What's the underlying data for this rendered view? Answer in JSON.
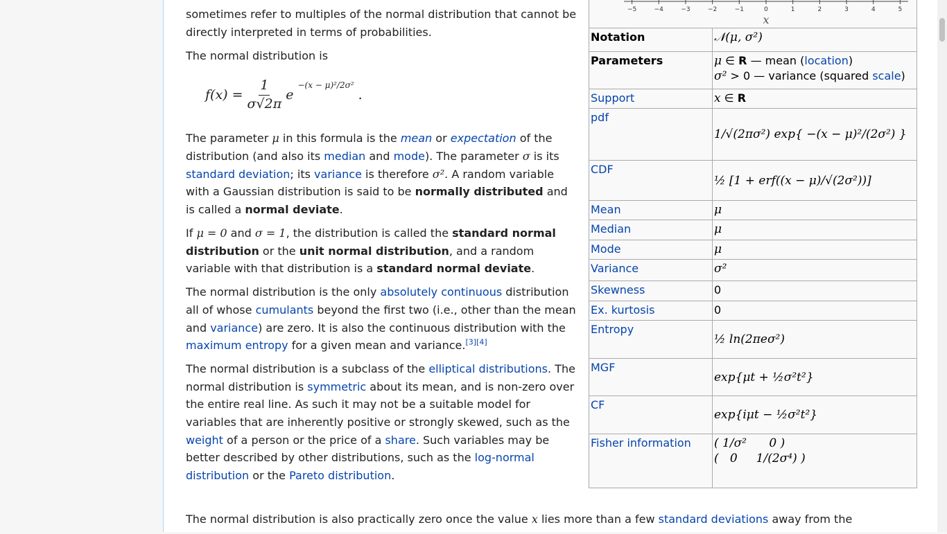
{
  "article": {
    "paragraphs": [
      {
        "runs": [
          {
            "t": "sometimes refer to multiples of the normal distribution that cannot be directly interpreted in terms of probabilities.",
            "s": "text"
          }
        ]
      },
      {
        "runs": [
          {
            "t": "The normal distribution is",
            "s": "text"
          }
        ]
      },
      {
        "runs": [
          {
            "t": "The parameter ",
            "s": "text"
          },
          {
            "t": "μ",
            "s": "math"
          },
          {
            "t": " in this formula is the ",
            "s": "text"
          },
          {
            "t": "mean",
            "s": "ilink"
          },
          {
            "t": " or ",
            "s": "text"
          },
          {
            "t": "expectation",
            "s": "ilink"
          },
          {
            "t": " of the distribution (and also its ",
            "s": "text"
          },
          {
            "t": "median",
            "s": "link"
          },
          {
            "t": " and ",
            "s": "text"
          },
          {
            "t": "mode",
            "s": "link"
          },
          {
            "t": "). The parameter ",
            "s": "text"
          },
          {
            "t": "σ",
            "s": "math"
          },
          {
            "t": " is its ",
            "s": "text"
          },
          {
            "t": "standard deviation",
            "s": "link"
          },
          {
            "t": "; its ",
            "s": "text"
          },
          {
            "t": "variance",
            "s": "link"
          },
          {
            "t": " is therefore ",
            "s": "text"
          },
          {
            "t": "σ²",
            "s": "math"
          },
          {
            "t": ". A random variable with a Gaussian distribution is said to be ",
            "s": "text"
          },
          {
            "t": "normally distributed",
            "s": "bold"
          },
          {
            "t": " and is called a ",
            "s": "text"
          },
          {
            "t": "normal deviate",
            "s": "bold"
          },
          {
            "t": ".",
            "s": "text"
          }
        ]
      },
      {
        "runs": [
          {
            "t": "If ",
            "s": "text"
          },
          {
            "t": "μ = 0",
            "s": "math"
          },
          {
            "t": " and ",
            "s": "text"
          },
          {
            "t": "σ = 1",
            "s": "math"
          },
          {
            "t": ", the distribution is called the ",
            "s": "text"
          },
          {
            "t": "standard normal distribution",
            "s": "bold"
          },
          {
            "t": " or the ",
            "s": "text"
          },
          {
            "t": "unit normal distribution",
            "s": "bold"
          },
          {
            "t": ", and a random variable with that distribution is a ",
            "s": "text"
          },
          {
            "t": "standard normal deviate",
            "s": "bold"
          },
          {
            "t": ".",
            "s": "text"
          }
        ]
      },
      {
        "runs": [
          {
            "t": "The normal distribution is the only ",
            "s": "text"
          },
          {
            "t": "absolutely continuous",
            "s": "link"
          },
          {
            "t": " distribution all of whose ",
            "s": "text"
          },
          {
            "t": "cumulants",
            "s": "link"
          },
          {
            "t": " beyond the first two (i.e., other than the mean and ",
            "s": "text"
          },
          {
            "t": "variance",
            "s": "link"
          },
          {
            "t": ") are zero. It is also the continuous distribution with the ",
            "s": "text"
          },
          {
            "t": "maximum entropy",
            "s": "link"
          },
          {
            "t": " for a given mean and variance.",
            "s": "text"
          },
          {
            "t": "[3]",
            "s": "sup"
          },
          {
            "t": "[4]",
            "s": "sup"
          }
        ]
      },
      {
        "runs": [
          {
            "t": "The normal distribution is a subclass of the ",
            "s": "text"
          },
          {
            "t": "elliptical distributions",
            "s": "link"
          },
          {
            "t": ". The normal distribution is ",
            "s": "text"
          },
          {
            "t": "symmetric",
            "s": "link"
          },
          {
            "t": " about its mean, and is non-zero over the entire real line. As such it may not be a suitable model for variables that are inherently positive or strongly skewed, such as the ",
            "s": "text"
          },
          {
            "t": "weight",
            "s": "link"
          },
          {
            "t": " of a person or the price of a ",
            "s": "text"
          },
          {
            "t": "share",
            "s": "link"
          },
          {
            "t": ". Such variables may be better described by other distributions, such as the ",
            "s": "text"
          },
          {
            "t": "log-normal distribution",
            "s": "link"
          },
          {
            "t": " or the ",
            "s": "text"
          },
          {
            "t": "Pareto distribution",
            "s": "link"
          },
          {
            "t": ".",
            "s": "text"
          }
        ]
      }
    ],
    "formula": {
      "lhs": "f(x) =",
      "num": "1",
      "den": "σ√2π",
      "base": "e",
      "exp": "−(x − μ)²/2σ²",
      "end": "."
    },
    "tail": {
      "runs": [
        {
          "t": "The normal distribution is also practically zero once the value ",
          "s": "text"
        },
        {
          "t": "x",
          "s": "math"
        },
        {
          "t": " lies more than a few ",
          "s": "text"
        },
        {
          "t": "standard deviations",
          "s": "link"
        },
        {
          "t": " away from the",
          "s": "text"
        }
      ]
    }
  },
  "infobox": {
    "axis": {
      "xlim": [
        -5.3,
        5.3
      ],
      "xticks": [
        {
          "value": -5,
          "label": "−5"
        },
        {
          "value": -4,
          "label": "−4"
        },
        {
          "value": -3,
          "label": "−3"
        },
        {
          "value": -2,
          "label": "−2"
        },
        {
          "value": -1,
          "label": "−1"
        },
        0,
        1,
        2,
        3,
        4,
        5
      ],
      "xlabel": "x"
    },
    "rows": [
      {
        "label": {
          "t": "Notation",
          "s": "bold"
        },
        "value": [
          [
            {
              "t": "𝒩(μ, σ²)",
              "s": "math"
            }
          ]
        ]
      },
      {
        "label": {
          "t": "Parameters",
          "s": "bold"
        },
        "value": [
          [
            {
              "t": "μ",
              "s": "math"
            },
            {
              "t": " ∈ ",
              "s": "text"
            },
            {
              "t": "R",
              "s": "bold"
            },
            {
              "t": " — mean (",
              "s": "text"
            },
            {
              "t": "location",
              "s": "link"
            },
            {
              "t": ")",
              "s": "text"
            }
          ],
          [
            {
              "t": "σ²",
              "s": "math"
            },
            {
              "t": " > 0 — variance (squared ",
              "s": "text"
            },
            {
              "t": "scale",
              "s": "link"
            },
            {
              "t": ")",
              "s": "text"
            }
          ]
        ]
      },
      {
        "label": {
          "t": "Support",
          "s": "link"
        },
        "value": [
          [
            {
              "t": "x",
              "s": "math"
            },
            {
              "t": " ∈ ",
              "s": "text"
            },
            {
              "t": "R",
              "s": "bold"
            }
          ]
        ]
      },
      {
        "label": {
          "t": "pdf",
          "s": "link"
        },
        "value": [
          [
            {
              "t": "1/√(2πσ²) exp{ −(x − μ)²/(2σ²) }",
              "s": "math"
            }
          ]
        ]
      },
      {
        "label": {
          "t": "CDF",
          "s": "link"
        },
        "value": [
          [
            {
              "t": "½ [1 + erf((x − μ)/√(2σ²))]",
              "s": "math"
            }
          ]
        ]
      },
      {
        "label": {
          "t": "Mean",
          "s": "link"
        },
        "value": [
          [
            {
              "t": "μ",
              "s": "math"
            }
          ]
        ]
      },
      {
        "label": {
          "t": "Median",
          "s": "link"
        },
        "value": [
          [
            {
              "t": "μ",
              "s": "math"
            }
          ]
        ]
      },
      {
        "label": {
          "t": "Mode",
          "s": "link"
        },
        "value": [
          [
            {
              "t": "μ",
              "s": "math"
            }
          ]
        ]
      },
      {
        "label": {
          "t": "Variance",
          "s": "link"
        },
        "value": [
          [
            {
              "t": "σ²",
              "s": "math"
            }
          ]
        ]
      },
      {
        "label": {
          "t": "Skewness",
          "s": "link"
        },
        "value": [
          [
            {
              "t": "0",
              "s": "text"
            }
          ]
        ]
      },
      {
        "label": {
          "t": "Ex. kurtosis",
          "s": "link"
        },
        "value": [
          [
            {
              "t": "0",
              "s": "text"
            }
          ]
        ]
      },
      {
        "label": {
          "t": "Entropy",
          "s": "link"
        },
        "value": [
          [
            {
              "t": "½ ln(2πeσ²)",
              "s": "math"
            }
          ]
        ]
      },
      {
        "label": {
          "t": "MGF",
          "s": "link"
        },
        "value": [
          [
            {
              "t": "exp{μt + ½σ²t²}",
              "s": "math"
            }
          ]
        ]
      },
      {
        "label": {
          "t": "CF",
          "s": "link"
        },
        "value": [
          [
            {
              "t": "exp{iμt − ½σ²t²}",
              "s": "math"
            }
          ]
        ]
      },
      {
        "label": {
          "t": "Fisher information",
          "s": "link"
        },
        "value": [
          [
            {
              "t": "( 1/σ²      0 )",
              "s": "math"
            }
          ],
          [
            {
              "t": "(   0     1/(2σ⁴) )",
              "s": "math"
            }
          ]
        ]
      }
    ]
  }
}
